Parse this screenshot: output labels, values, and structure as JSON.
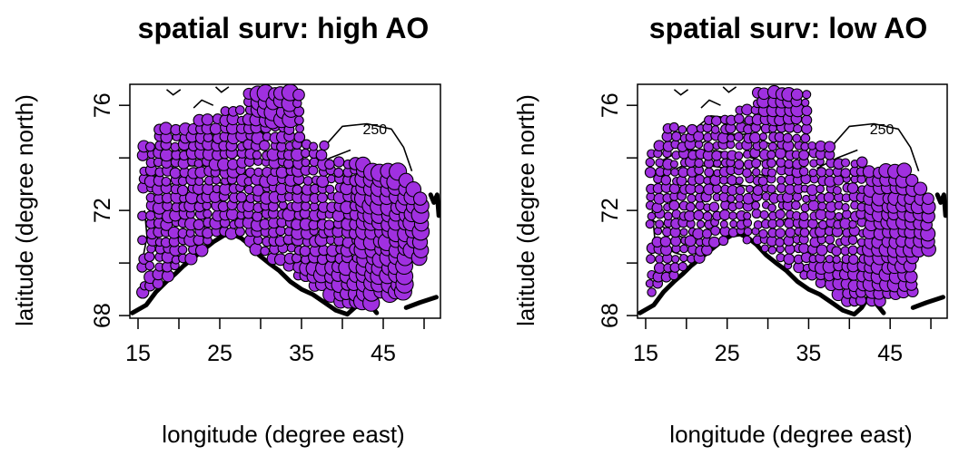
{
  "chart_data": [
    {
      "type": "scatter",
      "title": "spatial surv: high AO",
      "xlabel": "longitude (degree east)",
      "ylabel": "latitude (degree north)",
      "xlim": [
        14,
        52
      ],
      "ylim": [
        67.9,
        76.8
      ],
      "x_ticks": [
        "15",
        "25",
        "35",
        "45"
      ],
      "x_tick_values": [
        15,
        25,
        35,
        45
      ],
      "x_minor_ticks": [
        15,
        20,
        25,
        30,
        35,
        40,
        45,
        50
      ],
      "y_ticks": [
        "68",
        "72",
        "76"
      ],
      "y_tick_values": [
        68,
        72,
        76
      ],
      "y_minor_ticks": [
        68,
        70,
        72,
        74,
        76
      ],
      "contour_label": "250",
      "contour_label_pos": [
        42.5,
        74.9
      ],
      "point_color": "#a030e0",
      "grid": false,
      "size_level": 0.65
    },
    {
      "type": "scatter",
      "title": "spatial surv: low AO",
      "xlabel": "longitude (degree east)",
      "ylabel": "latitude (degree north)",
      "xlim": [
        14,
        52
      ],
      "ylim": [
        67.9,
        76.8
      ],
      "x_ticks": [
        "15",
        "25",
        "35",
        "45"
      ],
      "x_tick_values": [
        15,
        25,
        35,
        45
      ],
      "x_minor_ticks": [
        15,
        20,
        25,
        30,
        35,
        40,
        45,
        50
      ],
      "y_ticks": [
        "68",
        "72",
        "76"
      ],
      "y_tick_values": [
        68,
        72,
        76
      ],
      "y_minor_ticks": [
        68,
        70,
        72,
        74,
        76
      ],
      "contour_label": "250",
      "contour_label_pos": [
        42.5,
        74.9
      ],
      "point_color": "#a030e0",
      "grid": false,
      "size_level": 0.5
    }
  ]
}
